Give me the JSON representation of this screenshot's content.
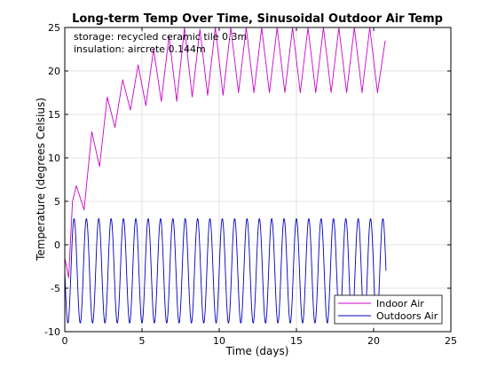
{
  "colors": {
    "indoor": "#cc00cc",
    "outdoor": "#0000bb",
    "grid": "#e3e3e3",
    "axis": "#000000"
  },
  "chart_data": {
    "type": "line",
    "title": "Long-term Temp Over Time, Sinusoidal Outdoor Air Temp",
    "xlabel": "Time (days)",
    "ylabel": "Temperature (degrees Celsius)",
    "xlim": [
      0,
      25
    ],
    "ylim": [
      -10,
      25
    ],
    "xticks": [
      0,
      5,
      10,
      15,
      20,
      25
    ],
    "yticks": [
      -10,
      -5,
      0,
      5,
      10,
      15,
      20,
      25
    ],
    "grid": true,
    "legend_position": "bottom-right",
    "annotations": [
      "storage: recycled ceramic tile 0.3m",
      "insulation: aircrete 0.144m"
    ],
    "series": [
      {
        "name": "Indoor Air",
        "x": [
          0,
          0.25,
          0.5,
          0.75,
          1.25,
          1.75,
          2.25,
          2.75,
          3.25,
          3.75,
          4.25,
          4.75,
          5.25,
          5.75,
          6.25,
          6.75,
          7.25,
          7.75,
          8.25,
          8.75,
          9.25,
          9.75,
          10.25,
          10.75,
          11.25,
          11.75,
          12.25,
          12.75,
          13.25,
          13.75,
          14.25,
          14.75,
          15.25,
          15.75,
          16.25,
          16.75,
          17.25,
          17.75,
          18.25,
          18.75,
          19.25,
          19.75,
          20.25,
          20.75
        ],
        "y": [
          -1.5,
          -3.8,
          5.0,
          6.8,
          4.0,
          13.0,
          9.0,
          17.0,
          13.5,
          19.0,
          15.5,
          20.7,
          16.0,
          22.5,
          16.5,
          24.0,
          16.5,
          25.0,
          17.0,
          24.8,
          17.2,
          25.0,
          17.2,
          25.0,
          17.5,
          25.0,
          17.5,
          25.0,
          17.5,
          25.0,
          17.5,
          25.0,
          17.5,
          25.0,
          17.5,
          25.0,
          17.5,
          25.0,
          17.5,
          25.0,
          17.5,
          25.0,
          17.5,
          23.5
        ]
      },
      {
        "name": "Outdoors Air",
        "period_days": 0.8,
        "min": -9,
        "max": 3,
        "start_value": -3,
        "x_end": 20.8
      }
    ]
  }
}
